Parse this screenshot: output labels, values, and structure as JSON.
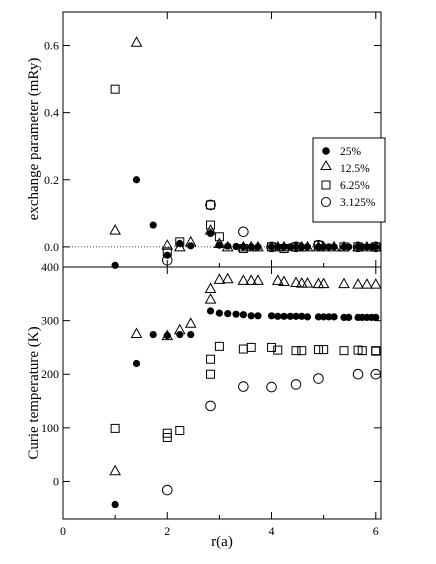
{
  "chart_data": [
    {
      "type": "scatter",
      "panel": "top",
      "xlabel": "",
      "ylabel": "exchange parameter (mRy)",
      "xlim": [
        0,
        6.1
      ],
      "ylim": [
        -0.06,
        0.7
      ],
      "yticks": [
        0.0,
        0.2,
        0.4,
        0.6
      ],
      "ytick_labels": [
        "0.0",
        "0.2",
        "0.4",
        "0.6"
      ],
      "zero_line": true,
      "legend": {
        "placement": "right",
        "entries": [
          {
            "label": "25%",
            "marker": "filled-circle"
          },
          {
            "label": "12.5%",
            "marker": "triangle"
          },
          {
            "label": "6.25%",
            "marker": "square"
          },
          {
            "label": "3.125%",
            "marker": "circle"
          }
        ]
      },
      "series": [
        {
          "name": "25%",
          "marker": "filled-circle",
          "points": [
            [
              1.0,
              -0.055
            ],
            [
              1.41,
              0.2
            ],
            [
              1.73,
              0.065
            ],
            [
              2.0,
              -0.025
            ],
            [
              2.24,
              0.01
            ],
            [
              2.45,
              0.003
            ],
            [
              2.83,
              0.04
            ],
            [
              3.0,
              0.005
            ],
            [
              3.16,
              0.002
            ],
            [
              3.32,
              0.001
            ],
            [
              3.46,
              0.0
            ],
            [
              3.61,
              0.0
            ],
            [
              3.74,
              0.0
            ],
            [
              4.0,
              0.0
            ],
            [
              4.12,
              0.0
            ],
            [
              4.24,
              0.0
            ],
            [
              4.36,
              0.0
            ],
            [
              4.47,
              0.0
            ],
            [
              4.58,
              0.0
            ],
            [
              4.69,
              0.0
            ],
            [
              4.9,
              0.0
            ],
            [
              5.0,
              0.0
            ],
            [
              5.1,
              0.0
            ],
            [
              5.2,
              0.0
            ],
            [
              5.39,
              0.0
            ],
            [
              5.48,
              0.0
            ],
            [
              5.66,
              0.0
            ],
            [
              5.74,
              0.0
            ],
            [
              5.83,
              0.0
            ],
            [
              5.92,
              0.0
            ],
            [
              6.0,
              0.0
            ]
          ]
        },
        {
          "name": "12.5%",
          "marker": "triangle",
          "points": [
            [
              1.0,
              0.05
            ],
            [
              1.41,
              0.61
            ],
            [
              2.0,
              0.005
            ],
            [
              2.24,
              0.0
            ],
            [
              2.45,
              0.015
            ],
            [
              2.83,
              0.05
            ],
            [
              3.0,
              0.01
            ],
            [
              3.16,
              0.0
            ],
            [
              3.46,
              0.0
            ],
            [
              3.61,
              0.0
            ],
            [
              3.74,
              0.0
            ],
            [
              4.12,
              0.0
            ],
            [
              4.24,
              0.0
            ],
            [
              4.47,
              0.0
            ],
            [
              4.58,
              0.0
            ],
            [
              4.69,
              0.0
            ],
            [
              4.9,
              0.0
            ],
            [
              5.0,
              0.0
            ],
            [
              5.2,
              0.0
            ],
            [
              5.39,
              0.0
            ],
            [
              5.66,
              0.0
            ],
            [
              5.83,
              0.0
            ],
            [
              6.0,
              0.0
            ]
          ]
        },
        {
          "name": "6.25%",
          "marker": "square",
          "points": [
            [
              1.0,
              0.47
            ],
            [
              2.0,
              -0.015
            ],
            [
              2.24,
              0.015
            ],
            [
              2.83,
              0.065
            ],
            [
              2.83,
              0.125
            ],
            [
              3.0,
              0.03
            ],
            [
              3.46,
              -0.005
            ],
            [
              4.0,
              0.0
            ],
            [
              4.24,
              -0.005
            ],
            [
              4.47,
              0.0
            ],
            [
              4.9,
              0.005
            ],
            [
              5.39,
              0.0
            ],
            [
              5.66,
              0.0
            ],
            [
              6.0,
              0.0
            ]
          ]
        },
        {
          "name": "3.125%",
          "marker": "circle",
          "points": [
            [
              2.0,
              -0.04
            ],
            [
              2.83,
              0.125
            ],
            [
              3.46,
              0.045
            ],
            [
              4.0,
              0.0
            ],
            [
              4.47,
              0.0
            ],
            [
              4.9,
              0.005
            ],
            [
              5.66,
              0.0
            ],
            [
              6.0,
              0.0
            ]
          ]
        }
      ]
    },
    {
      "type": "scatter",
      "panel": "bottom",
      "xlabel": "r(a)",
      "ylabel": "Curie temperature (K)",
      "xlim": [
        0,
        6.1
      ],
      "ylim": [
        -70,
        400
      ],
      "xticks": [
        0,
        2,
        4,
        6
      ],
      "xtick_labels": [
        "0",
        "2",
        "4",
        "6"
      ],
      "yticks": [
        0,
        100,
        200,
        300,
        400
      ],
      "ytick_labels": [
        "0",
        "100",
        "200",
        "300",
        "400"
      ],
      "series": [
        {
          "name": "25%",
          "marker": "filled-circle",
          "points": [
            [
              1.0,
              -43
            ],
            [
              1.41,
              220
            ],
            [
              1.73,
              274
            ],
            [
              2.0,
              272
            ],
            [
              2.24,
              274
            ],
            [
              2.45,
              274
            ],
            [
              2.83,
              318
            ],
            [
              3.0,
              314
            ],
            [
              3.16,
              313
            ],
            [
              3.32,
              312
            ],
            [
              3.46,
              311
            ],
            [
              3.61,
              309
            ],
            [
              3.74,
              309
            ],
            [
              4.0,
              309
            ],
            [
              4.12,
              308
            ],
            [
              4.24,
              308
            ],
            [
              4.36,
              308
            ],
            [
              4.47,
              308
            ],
            [
              4.58,
              308
            ],
            [
              4.69,
              307
            ],
            [
              4.9,
              307
            ],
            [
              5.0,
              307
            ],
            [
              5.1,
              307
            ],
            [
              5.2,
              307
            ],
            [
              5.39,
              306
            ],
            [
              5.48,
              306
            ],
            [
              5.66,
              306
            ],
            [
              5.74,
              306
            ],
            [
              5.83,
              306
            ],
            [
              5.92,
              306
            ],
            [
              6.0,
              306
            ]
          ]
        },
        {
          "name": "12.5%",
          "marker": "triangle",
          "points": [
            [
              1.0,
              20
            ],
            [
              1.41,
              276
            ],
            [
              2.0,
              272
            ],
            [
              2.24,
              283
            ],
            [
              2.45,
              295
            ],
            [
              2.83,
              340
            ],
            [
              2.83,
              360
            ],
            [
              3.0,
              377
            ],
            [
              3.16,
              378
            ],
            [
              3.46,
              375
            ],
            [
              3.61,
              375
            ],
            [
              3.74,
              375
            ],
            [
              4.12,
              375
            ],
            [
              4.24,
              373
            ],
            [
              4.47,
              371
            ],
            [
              4.58,
              370
            ],
            [
              4.69,
              370
            ],
            [
              4.9,
              369
            ],
            [
              5.0,
              369
            ],
            [
              5.39,
              369
            ],
            [
              5.66,
              368
            ],
            [
              5.83,
              368
            ],
            [
              6.0,
              368
            ]
          ]
        },
        {
          "name": "6.25%",
          "marker": "square",
          "points": [
            [
              1.0,
              99
            ],
            [
              2.0,
              82
            ],
            [
              2.0,
              90
            ],
            [
              2.24,
              95
            ],
            [
              2.83,
              200
            ],
            [
              2.83,
              228
            ],
            [
              3.0,
              252
            ],
            [
              3.46,
              247
            ],
            [
              3.61,
              250
            ],
            [
              4.0,
              250
            ],
            [
              4.12,
              245
            ],
            [
              4.47,
              244
            ],
            [
              4.58,
              244
            ],
            [
              4.9,
              246
            ],
            [
              5.0,
              246
            ],
            [
              5.39,
              244
            ],
            [
              5.66,
              245
            ],
            [
              5.74,
              244
            ],
            [
              6.0,
              243
            ],
            [
              6.0,
              244
            ]
          ]
        },
        {
          "name": "3.125%",
          "marker": "circle",
          "points": [
            [
              2.0,
              -16
            ],
            [
              2.83,
              141
            ],
            [
              3.46,
              177
            ],
            [
              4.0,
              176
            ],
            [
              4.47,
              181
            ],
            [
              4.9,
              192
            ],
            [
              5.66,
              200
            ],
            [
              6.0,
              200
            ]
          ]
        }
      ]
    }
  ]
}
